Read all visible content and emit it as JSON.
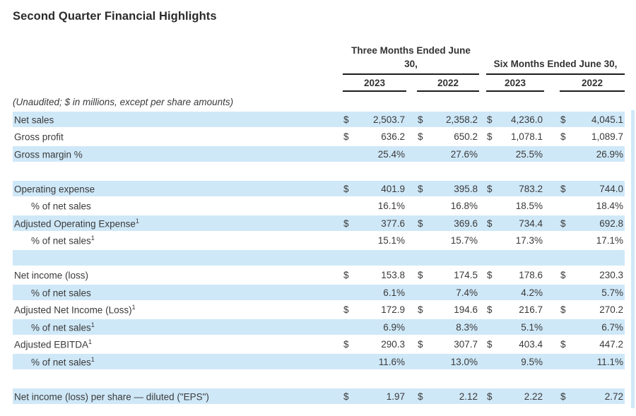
{
  "page": {
    "title": "Second Quarter Financial Highlights",
    "note": "(Unaudited; $ in millions, except per share amounts)"
  },
  "colors": {
    "row_highlight": "#cfe8f8",
    "text": "#3a3a3a",
    "rule": "#1c1c1c"
  },
  "table": {
    "currency_symbol": "$",
    "col_groups": [
      {
        "label": "Three Months Ended June 30,",
        "years": [
          "2023",
          "2022"
        ]
      },
      {
        "label": "Six Months Ended June 30,",
        "years": [
          "2023",
          "2022"
        ]
      }
    ],
    "rows": [
      {
        "label": "Net sales",
        "sup": "",
        "indent": false,
        "type": "dollar",
        "shaded": true,
        "values": [
          "2,503.7",
          "2,358.2",
          "4,236.0",
          "4,045.1"
        ]
      },
      {
        "label": "Gross profit",
        "sup": "",
        "indent": false,
        "type": "dollar",
        "shaded": false,
        "values": [
          "636.2",
          "650.2",
          "1,078.1",
          "1,089.7"
        ]
      },
      {
        "label": "Gross margin %",
        "sup": "",
        "indent": false,
        "type": "percent",
        "shaded": true,
        "values": [
          "25.4%",
          "27.6%",
          "25.5%",
          "26.9%"
        ]
      },
      {
        "label": "",
        "sup": "",
        "indent": false,
        "type": "empty",
        "shaded": false,
        "values": [
          "",
          "",
          "",
          ""
        ]
      },
      {
        "label": "Operating expense",
        "sup": "",
        "indent": false,
        "type": "dollar",
        "shaded": true,
        "values": [
          "401.9",
          "395.8",
          "783.2",
          "744.0"
        ]
      },
      {
        "label": "% of net sales",
        "sup": "",
        "indent": true,
        "type": "percent",
        "shaded": false,
        "values": [
          "16.1%",
          "16.8%",
          "18.5%",
          "18.4%"
        ]
      },
      {
        "label": "Adjusted Operating Expense",
        "sup": "1",
        "indent": false,
        "type": "dollar",
        "shaded": true,
        "values": [
          "377.6",
          "369.6",
          "734.4",
          "692.8"
        ]
      },
      {
        "label": "% of net sales",
        "sup": "1",
        "indent": true,
        "type": "percent",
        "shaded": false,
        "values": [
          "15.1%",
          "15.7%",
          "17.3%",
          "17.1%"
        ]
      },
      {
        "label": "",
        "sup": "",
        "indent": false,
        "type": "empty",
        "shaded": true,
        "values": [
          "",
          "",
          "",
          ""
        ]
      },
      {
        "label": "Net income (loss)",
        "sup": "",
        "indent": false,
        "type": "dollar",
        "shaded": false,
        "values": [
          "153.8",
          "174.5",
          "178.6",
          "230.3"
        ]
      },
      {
        "label": "% of net sales",
        "sup": "",
        "indent": true,
        "type": "percent",
        "shaded": true,
        "values": [
          "6.1%",
          "7.4%",
          "4.2%",
          "5.7%"
        ]
      },
      {
        "label": "Adjusted Net Income (Loss)",
        "sup": "1",
        "indent": false,
        "type": "dollar",
        "shaded": false,
        "values": [
          "172.9",
          "194.6",
          "216.7",
          "270.2"
        ]
      },
      {
        "label": "% of net sales",
        "sup": "1",
        "indent": true,
        "type": "percent",
        "shaded": true,
        "values": [
          "6.9%",
          "8.3%",
          "5.1%",
          "6.7%"
        ]
      },
      {
        "label": "Adjusted EBITDA",
        "sup": "1",
        "indent": false,
        "type": "dollar",
        "shaded": false,
        "values": [
          "290.3",
          "307.7",
          "403.4",
          "447.2"
        ]
      },
      {
        "label": "% of net sales",
        "sup": "1",
        "indent": true,
        "type": "percent",
        "shaded": true,
        "values": [
          "11.6%",
          "13.0%",
          "9.5%",
          "11.1%"
        ]
      },
      {
        "label": "",
        "sup": "",
        "indent": false,
        "type": "empty",
        "shaded": false,
        "values": [
          "",
          "",
          "",
          ""
        ]
      },
      {
        "label": "Net income (loss) per share — diluted (\"EPS\")",
        "sup": "",
        "indent": false,
        "type": "dollar",
        "shaded": true,
        "values": [
          "1.97",
          "2.12",
          "2.22",
          "2.72"
        ]
      }
    ]
  }
}
